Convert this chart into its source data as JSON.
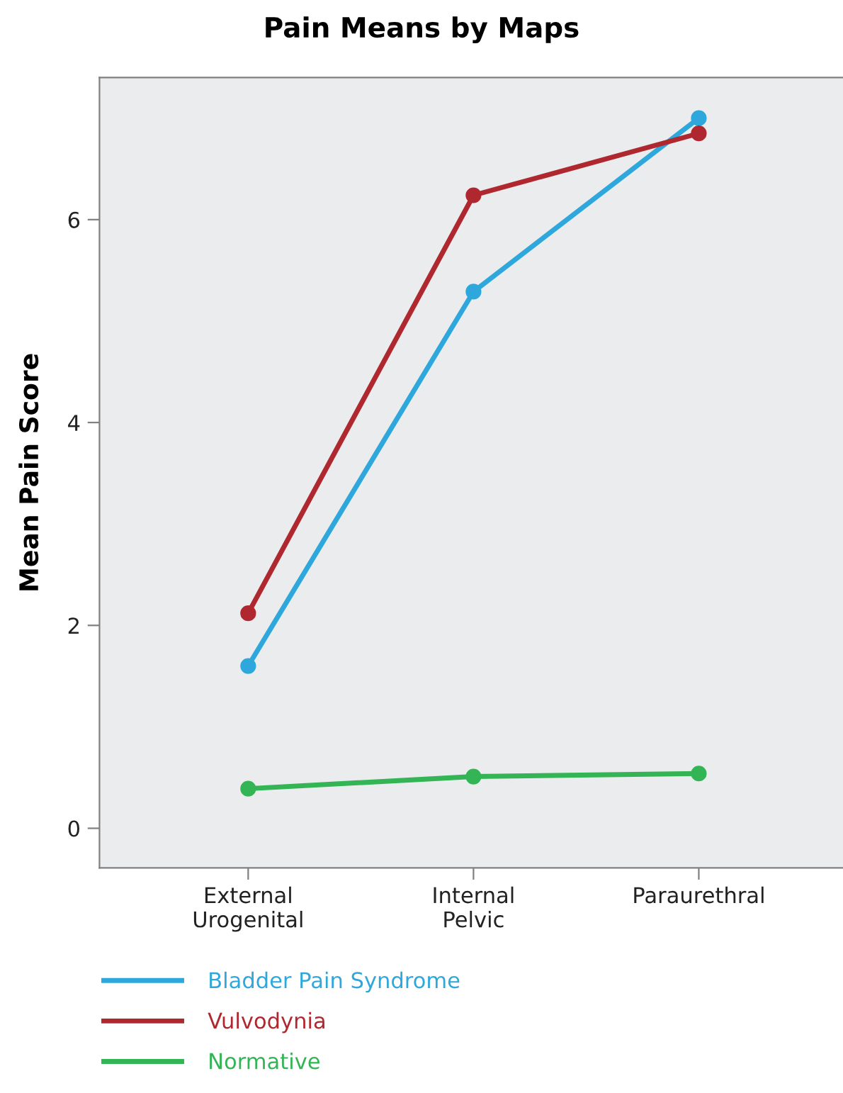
{
  "chart_data": {
    "type": "line",
    "title": "Pain Means by Maps",
    "ylabel": "Mean Pain Score",
    "categories": [
      "External\nUrogenital",
      "Internal\nPelvic",
      "Paraurethral"
    ],
    "series": [
      {
        "name": "Bladder Pain Syndrome",
        "color": "#2ea8dc",
        "values": [
          1.6,
          5.29,
          7.0
        ]
      },
      {
        "name": "Vulvodynia",
        "color": "#b0282f",
        "values": [
          2.12,
          6.24,
          6.85
        ]
      },
      {
        "name": "Normative",
        "color": "#33b555",
        "values": [
          0.39,
          0.51,
          0.54
        ]
      }
    ],
    "ylim": [
      -0.39,
      7.4
    ],
    "yticks": [
      0,
      2,
      4,
      6
    ],
    "grid": false,
    "legend": "bottom",
    "marker": "circle",
    "line_style": "solid"
  }
}
